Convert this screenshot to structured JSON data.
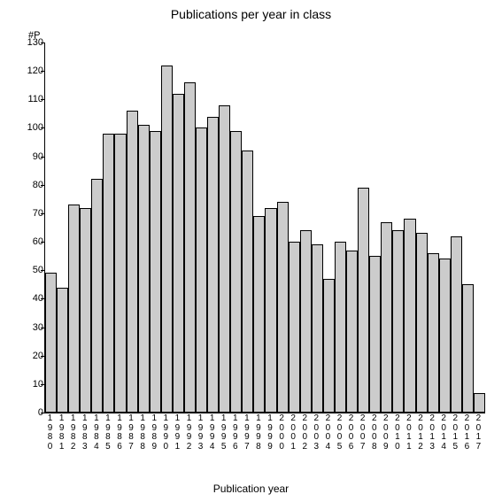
{
  "chart": {
    "type": "bar",
    "title": "Publications per year in class",
    "y_axis_label": "#P",
    "x_axis_label": "Publication year",
    "ylim": [
      0,
      130
    ],
    "ytick_step": 10,
    "yticks": [
      0,
      10,
      20,
      30,
      40,
      50,
      60,
      70,
      80,
      90,
      100,
      110,
      120,
      130
    ],
    "categories": [
      "1980",
      "1981",
      "1982",
      "1983",
      "1984",
      "1985",
      "1986",
      "1987",
      "1988",
      "1989",
      "1990",
      "1991",
      "1992",
      "1993",
      "1994",
      "1995",
      "1996",
      "1997",
      "1998",
      "1999",
      "2000",
      "2001",
      "2002",
      "2003",
      "2004",
      "2005",
      "2006",
      "2007",
      "2008",
      "2009",
      "2010",
      "2011",
      "2012",
      "2013",
      "2014",
      "2015",
      "2016",
      "2017"
    ],
    "values": [
      49,
      44,
      73,
      72,
      82,
      98,
      98,
      106,
      101,
      99,
      122,
      112,
      116,
      100,
      104,
      108,
      99,
      92,
      69,
      72,
      74,
      60,
      64,
      59,
      47,
      60,
      57,
      79,
      55,
      67,
      64,
      68,
      63,
      56,
      54,
      62,
      45,
      7
    ],
    "bar_fill": "#cccccc",
    "bar_border": "#000000",
    "background_color": "#ffffff",
    "title_fontsize": 14,
    "label_fontsize": 12,
    "tick_fontsize": 11,
    "xlabel_fontsize": 10
  }
}
